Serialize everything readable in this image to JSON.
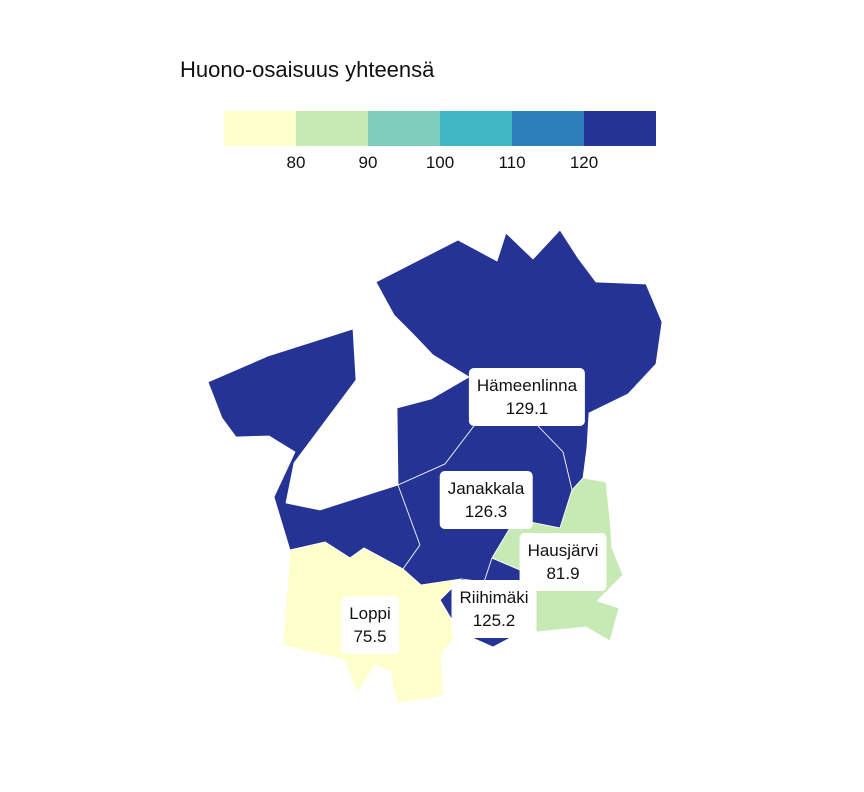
{
  "legend": {
    "title": "Huono-osaisuus yhteensä",
    "colors": [
      "#ffffcc",
      "#c7e9b4",
      "#7fcdbb",
      "#41b6c4",
      "#2c7fb8",
      "#253494"
    ],
    "ticks": [
      "80",
      "90",
      "100",
      "110",
      "120"
    ]
  },
  "regions": [
    {
      "name": "Hämeenlinna",
      "value": "129.1",
      "color": "#253494"
    },
    {
      "name": "Janakkala",
      "value": "126.3",
      "color": "#253494"
    },
    {
      "name": "Hausjärvi",
      "value": "81.9",
      "color": "#c7e9b4"
    },
    {
      "name": "Riihimäki",
      "value": "125.2",
      "color": "#253494"
    },
    {
      "name": "Loppi",
      "value": "75.5",
      "color": "#ffffcc"
    }
  ]
}
